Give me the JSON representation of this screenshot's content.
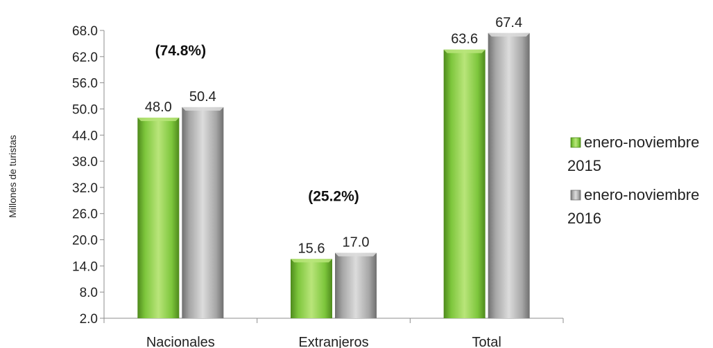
{
  "chart_data": {
    "type": "bar",
    "ylabel": "Millones  de turistas",
    "ylim": [
      2.0,
      68.0
    ],
    "yticks": [
      "2.0",
      "8.0",
      "14.0",
      "20.0",
      "26.0",
      "32.0",
      "38.0",
      "44.0",
      "50.0",
      "56.0",
      "62.0",
      "68.0"
    ],
    "categories": [
      "Nacionales",
      "Extranjeros",
      "Total"
    ],
    "series": [
      {
        "name": "enero-noviembre 2015",
        "legend_lines": [
          "enero-noviembre",
          "2015"
        ],
        "values": [
          48.0,
          15.6,
          63.6
        ],
        "labels": [
          "48.0",
          "15.6",
          "63.6"
        ],
        "color": "#7dc63c",
        "color_light": "#b9e57a",
        "color_dark": "#4e8a1c"
      },
      {
        "name": "enero-noviembre 2016",
        "legend_lines": [
          "enero-noviembre",
          "2016"
        ],
        "values": [
          50.4,
          17.0,
          67.4
        ],
        "labels": [
          "50.4",
          "17.0",
          "67.4"
        ],
        "color": "#a6a6a6",
        "color_light": "#dcdcdc",
        "color_dark": "#6f6f6f"
      }
    ],
    "annotations": [
      {
        "text": "(74.8%)",
        "category": "Nacionales"
      },
      {
        "text": "(25.2%)",
        "category": "Extranjeros"
      }
    ],
    "grid": false,
    "legend": "right"
  }
}
